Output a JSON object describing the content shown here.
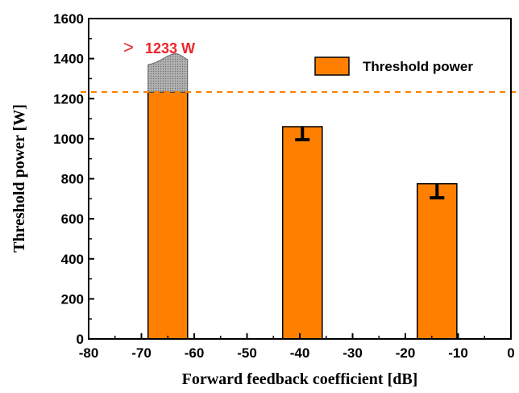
{
  "chart_data": {
    "type": "bar",
    "xlabel": "Forward feedback coefficient [dB]",
    "ylabel": "Threshold power [W]",
    "xlim": [
      -80,
      0
    ],
    "ylim": [
      0,
      1600
    ],
    "xticks": [
      -80,
      -70,
      -60,
      -50,
      -40,
      -30,
      -20,
      -10,
      0
    ],
    "yticks": [
      0,
      200,
      400,
      600,
      800,
      1000,
      1200,
      1400,
      1600
    ],
    "bar_width": 7.5,
    "series": [
      {
        "name": "Threshold power",
        "color": "#ff8000",
        "x": [
          -65,
          -39.5,
          -14
        ],
        "values": [
          1233,
          1060,
          775
        ],
        "error_low": [
          null,
          995,
          705
        ],
        "error_high": [
          null,
          1062,
          778
        ]
      }
    ],
    "exceeded_region": {
      "x": -65,
      "from": 1233,
      "to_left": 1370,
      "to_right": 1395,
      "color": "#a6a6a6"
    },
    "reference_line": {
      "y": 1233,
      "style": "dashed",
      "color": "#ff8000"
    },
    "annotation": {
      "text": "1233 W",
      "prefix_symbol": ">",
      "color": "#e8262c"
    },
    "legend": {
      "position": "top-right"
    }
  }
}
